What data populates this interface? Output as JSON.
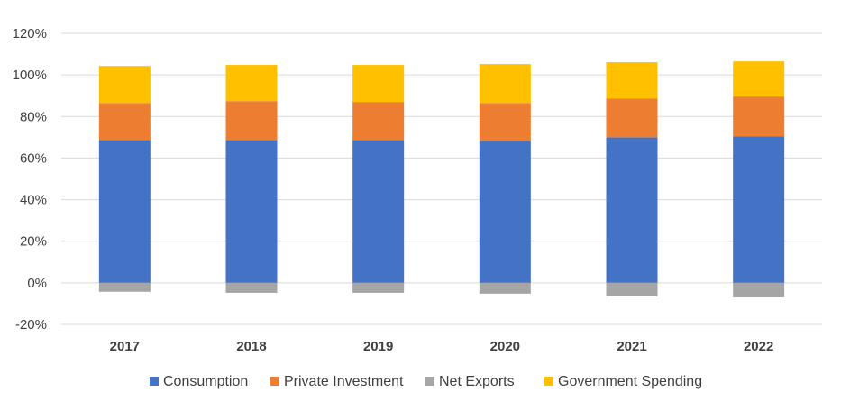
{
  "chart_data": {
    "type": "bar",
    "stacked": true,
    "title": "",
    "xlabel": "",
    "ylabel": "",
    "categories": [
      "2017",
      "2018",
      "2019",
      "2020",
      "2021",
      "2022"
    ],
    "series": [
      {
        "name": "Consumption",
        "color": "#4472C4",
        "values": [
          68.7,
          68.7,
          68.7,
          68.3,
          70.0,
          70.4
        ]
      },
      {
        "name": "Private Investment",
        "color": "#ED7D31",
        "values": [
          17.8,
          18.7,
          18.3,
          18.2,
          18.7,
          19.2
        ]
      },
      {
        "name": "Net Exports",
        "color": "#A5A5A5",
        "values": [
          -4.3,
          -4.8,
          -4.8,
          -5.2,
          -6.5,
          -7.0
        ]
      },
      {
        "name": "Government Spending",
        "color": "#FFC000",
        "values": [
          17.8,
          17.4,
          17.8,
          18.7,
          17.4,
          16.9
        ]
      }
    ],
    "ylim": [
      -20,
      120
    ],
    "yticks": [
      -20,
      0,
      20,
      40,
      60,
      80,
      100,
      120
    ],
    "ytick_labels": [
      "-20%",
      "0%",
      "20%",
      "40%",
      "60%",
      "80%",
      "100%",
      "120%"
    ],
    "grid": true,
    "legend_position": "bottom"
  }
}
